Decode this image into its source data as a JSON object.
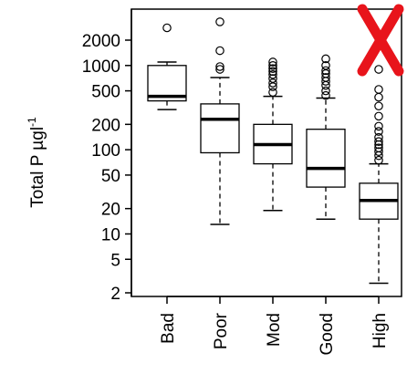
{
  "chart_data": {
    "type": "boxplot",
    "title": "",
    "xlabel": "",
    "ylabel": "Total P µgl",
    "ylabel_superscript": "-1",
    "y_scale": "log",
    "ylim": [
      2,
      3000
    ],
    "yticks": [
      2,
      5,
      10,
      20,
      50,
      100,
      200,
      500,
      1000,
      2000
    ],
    "ytick_labels": [
      "2",
      "5",
      "10",
      "20",
      "50",
      "100",
      "200",
      "500",
      "1000",
      "2000"
    ],
    "categories": [
      "Bad",
      "Poor",
      "Mod",
      "Good",
      "High"
    ],
    "boxes": [
      {
        "name": "Bad",
        "whisker_low": 300,
        "q1": 380,
        "median": 430,
        "q3": 1000,
        "whisker_high": 1100,
        "outliers": [
          2800
        ]
      },
      {
        "name": "Poor",
        "whisker_low": 13,
        "q1": 92,
        "median": 230,
        "q3": 350,
        "whisker_high": 720,
        "outliers": [
          900,
          970,
          1500,
          3300
        ]
      },
      {
        "name": "Mod",
        "whisker_low": 19,
        "q1": 68,
        "median": 115,
        "q3": 200,
        "whisker_high": 430,
        "outliers": [
          480,
          560,
          620,
          700,
          780,
          850,
          920,
          1000,
          1100
        ]
      },
      {
        "name": "Good",
        "whisker_low": 15,
        "q1": 36,
        "median": 60,
        "q3": 175,
        "whisker_high": 410,
        "outliers": [
          440,
          500,
          580,
          650,
          720,
          800,
          870,
          1000,
          1200
        ]
      },
      {
        "name": "High",
        "whisker_low": 2.6,
        "q1": 15,
        "median": 25,
        "q3": 40,
        "whisker_high": 68,
        "outliers": [
          75,
          85,
          95,
          105,
          115,
          125,
          140,
          165,
          190,
          250,
          330,
          420,
          520,
          900
        ]
      }
    ],
    "annotation": {
      "symbol": "✗",
      "color": "#e8141b",
      "position": "top-right"
    },
    "grid": false,
    "legend": "none"
  }
}
